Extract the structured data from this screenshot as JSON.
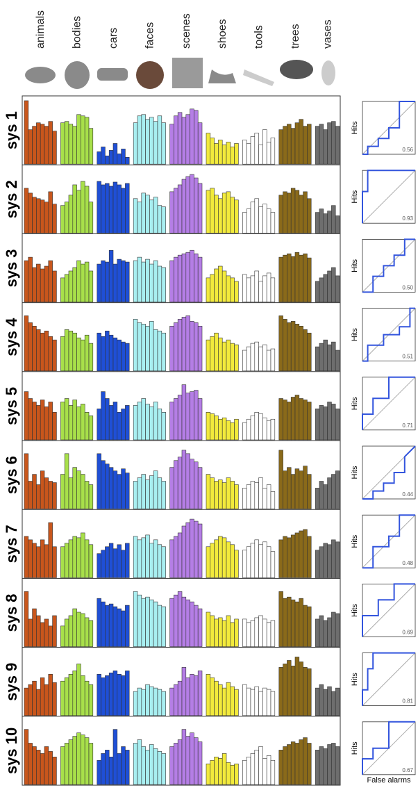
{
  "chart_data": {
    "type": "bar-grid",
    "categories": [
      "animals",
      "bodies",
      "cars",
      "faces",
      "scenes",
      "shoes",
      "tools",
      "trees",
      "vases"
    ],
    "colors": [
      "#c8561c",
      "#a8e04a",
      "#1f4fd6",
      "#a8eef0",
      "#b57ee6",
      "#f2ea3c",
      "#ffffff",
      "#8a6a1a",
      "#6e6e6e"
    ],
    "roc_ylabel": "Hits",
    "roc_xlabel": "False alarms",
    "rows": [
      {
        "label": "sys 1",
        "auc": {
          "value": 0.56,
          "label": "0.56"
        },
        "values": [
          [
            92,
            50,
            55,
            60,
            58,
            55,
            62,
            48
          ],
          [
            60,
            62,
            58,
            55,
            72,
            70,
            68,
            52
          ],
          [
            18,
            25,
            12,
            20,
            30,
            15,
            22,
            10
          ],
          [
            60,
            70,
            72,
            65,
            68,
            62,
            70,
            60
          ],
          [
            58,
            70,
            75,
            68,
            72,
            80,
            78,
            60
          ],
          [
            45,
            38,
            30,
            35,
            28,
            32,
            25,
            30
          ],
          [
            35,
            30,
            40,
            45,
            28,
            50,
            32,
            38
          ],
          [
            50,
            55,
            58,
            52,
            60,
            65,
            55,
            58
          ],
          [
            55,
            58,
            50,
            60,
            62,
            55
          ]
        ],
        "roc_x": [
          0,
          0.1,
          0.1,
          0.3,
          0.3,
          0.5,
          0.5,
          0.7,
          0.7,
          1
        ],
        "roc_y": [
          0,
          0,
          0.15,
          0.15,
          0.3,
          0.3,
          0.5,
          0.5,
          1,
          1
        ]
      },
      {
        "label": "sys 2",
        "auc": {
          "value": 0.93,
          "label": "0.93"
        },
        "values": [
          [
            65,
            58,
            52,
            50,
            48,
            45,
            60,
            42
          ],
          [
            40,
            45,
            55,
            70,
            62,
            75,
            68,
            45
          ],
          [
            75,
            70,
            72,
            68,
            74,
            70,
            65,
            72
          ],
          [
            50,
            45,
            58,
            55,
            48,
            52,
            40,
            38
          ],
          [
            60,
            65,
            70,
            78,
            82,
            85,
            80,
            72
          ],
          [
            62,
            65,
            55,
            50,
            58,
            60,
            52,
            48
          ],
          [
            30,
            35,
            45,
            50,
            38,
            42,
            35,
            30
          ],
          [
            55,
            60,
            58,
            65,
            62,
            55,
            60,
            50
          ],
          [
            30,
            35,
            28,
            32,
            40,
            25
          ]
        ],
        "roc_x": [
          0,
          0,
          0.1,
          0.1,
          1
        ],
        "roc_y": [
          0,
          0.6,
          0.6,
          1,
          1
        ]
      },
      {
        "label": "sys 3",
        "auc": {
          "value": 0.5,
          "label": "0.50"
        },
        "values": [
          [
            60,
            65,
            50,
            55,
            48,
            52,
            60,
            45
          ],
          [
            35,
            40,
            45,
            50,
            60,
            55,
            58,
            45
          ],
          [
            55,
            60,
            58,
            75,
            55,
            62,
            60,
            58
          ],
          [
            60,
            65,
            58,
            62,
            55,
            60,
            52,
            50
          ],
          [
            60,
            65,
            68,
            70,
            72,
            75,
            70,
            65
          ],
          [
            35,
            40,
            48,
            52,
            45,
            38,
            35,
            30
          ],
          [
            40,
            35,
            38,
            45,
            30,
            38,
            42,
            35
          ],
          [
            65,
            68,
            70,
            66,
            72,
            68,
            70,
            64
          ],
          [
            30,
            35,
            40,
            45,
            50,
            38
          ]
        ],
        "roc_x": [
          0,
          0.2,
          0.2,
          0.4,
          0.4,
          0.6,
          0.6,
          0.8,
          0.8,
          1
        ],
        "roc_y": [
          0,
          0,
          0.3,
          0.3,
          0.5,
          0.5,
          0.7,
          0.7,
          1,
          1
        ]
      },
      {
        "label": "sys 4",
        "auc": {
          "value": 0.51,
          "label": "0.51"
        },
        "values": [
          [
            80,
            70,
            65,
            60,
            55,
            58,
            50,
            45
          ],
          [
            50,
            60,
            58,
            55,
            48,
            45,
            52,
            40
          ],
          [
            55,
            50,
            58,
            52,
            48,
            45,
            42,
            40
          ],
          [
            75,
            70,
            68,
            65,
            72,
            60,
            58,
            55
          ],
          [
            65,
            70,
            75,
            78,
            80,
            72,
            70,
            65
          ],
          [
            45,
            50,
            55,
            48,
            42,
            45,
            40,
            38
          ],
          [
            30,
            35,
            40,
            42,
            35,
            38,
            30,
            32
          ],
          [
            80,
            75,
            70,
            72,
            68,
            65,
            60,
            55
          ],
          [
            35,
            40,
            45,
            38,
            42,
            30
          ]
        ],
        "roc_x": [
          0,
          0.1,
          0.1,
          0.4,
          0.4,
          0.7,
          0.7,
          0.9,
          0.9,
          1
        ],
        "roc_y": [
          0,
          0,
          0.3,
          0.3,
          0.5,
          0.5,
          0.65,
          0.65,
          1,
          1
        ]
      },
      {
        "label": "sys 5",
        "auc": {
          "value": 0.71,
          "label": "0.71"
        },
        "values": [
          [
            70,
            60,
            55,
            50,
            58,
            48,
            55,
            40
          ],
          [
            55,
            60,
            50,
            58,
            48,
            52,
            40,
            35
          ],
          [
            45,
            70,
            60,
            50,
            55,
            40,
            45,
            50
          ],
          [
            50,
            55,
            60,
            52,
            48,
            55,
            45,
            40
          ],
          [
            55,
            60,
            65,
            80,
            68,
            70,
            72,
            60
          ],
          [
            40,
            38,
            35,
            30,
            32,
            28,
            25,
            30
          ],
          [
            25,
            30,
            35,
            40,
            38,
            32,
            28,
            30
          ],
          [
            60,
            58,
            55,
            62,
            65,
            60,
            58,
            55
          ],
          [
            45,
            50,
            48,
            55,
            52,
            45
          ]
        ],
        "roc_x": [
          0,
          0,
          0.2,
          0.2,
          0.5,
          0.5,
          1
        ],
        "roc_y": [
          0,
          0.3,
          0.3,
          0.6,
          0.6,
          1,
          1
        ]
      },
      {
        "label": "sys 6",
        "auc": {
          "value": 0.44,
          "label": "0.44"
        },
        "values": [
          [
            80,
            40,
            50,
            35,
            55,
            45,
            40,
            38
          ],
          [
            50,
            80,
            45,
            60,
            55,
            50,
            40,
            35
          ],
          [
            80,
            70,
            65,
            60,
            55,
            50,
            58,
            52
          ],
          [
            40,
            45,
            50,
            42,
            48,
            55,
            45,
            40
          ],
          [
            60,
            70,
            75,
            85,
            80,
            72,
            68,
            60
          ],
          [
            50,
            45,
            40,
            42,
            38,
            45,
            40,
            35
          ],
          [
            30,
            35,
            40,
            38,
            45,
            30,
            35,
            25
          ],
          [
            85,
            55,
            60,
            50,
            58,
            55,
            62,
            50
          ],
          [
            30,
            40,
            35,
            45,
            50,
            55
          ]
        ],
        "roc_x": [
          0,
          0.2,
          0.2,
          0.4,
          0.4,
          0.6,
          0.6,
          0.8,
          0.8,
          1
        ],
        "roc_y": [
          0,
          0,
          0.15,
          0.15,
          0.3,
          0.3,
          0.5,
          0.5,
          0.8,
          1
        ]
      },
      {
        "label": "sys 7",
        "auc": {
          "value": 0.48,
          "label": "0.48"
        },
        "values": [
          [
            60,
            55,
            50,
            45,
            55,
            48,
            80,
            45
          ],
          [
            45,
            50,
            55,
            60,
            58,
            65,
            55,
            48
          ],
          [
            35,
            40,
            45,
            50,
            42,
            48,
            40,
            50
          ],
          [
            60,
            55,
            58,
            62,
            50,
            55,
            48,
            45
          ],
          [
            55,
            60,
            65,
            75,
            80,
            85,
            82,
            78
          ],
          [
            45,
            50,
            55,
            60,
            58,
            52,
            48,
            40
          ],
          [
            40,
            45,
            50,
            55,
            48,
            52,
            45,
            38
          ],
          [
            55,
            60,
            58,
            62,
            65,
            68,
            70,
            60
          ],
          [
            40,
            45,
            50,
            48,
            55,
            52
          ]
        ],
        "roc_x": [
          0,
          0.2,
          0.2,
          0.5,
          0.5,
          0.7,
          0.7,
          1
        ],
        "roc_y": [
          0,
          0,
          0.4,
          0.4,
          0.6,
          0.6,
          1,
          1
        ]
      },
      {
        "label": "sys 8",
        "auc": {
          "value": 0.69,
          "label": "0.69"
        },
        "values": [
          [
            80,
            40,
            55,
            45,
            35,
            40,
            30,
            45
          ],
          [
            30,
            40,
            45,
            55,
            50,
            48,
            42,
            38
          ],
          [
            70,
            65,
            60,
            62,
            58,
            55,
            52,
            60
          ],
          [
            80,
            75,
            70,
            72,
            68,
            65,
            60,
            58
          ],
          [
            70,
            75,
            80,
            72,
            68,
            65,
            60,
            55
          ],
          [
            50,
            45,
            40,
            42,
            38,
            45,
            35,
            40
          ],
          [
            40,
            35,
            38,
            42,
            45,
            40,
            35,
            38
          ],
          [
            80,
            70,
            72,
            68,
            65,
            70,
            60,
            58
          ],
          [
            40,
            45,
            38,
            42,
            50,
            48
          ]
        ],
        "roc_x": [
          0,
          0,
          0.3,
          0.3,
          0.6,
          0.6,
          1
        ],
        "roc_y": [
          0,
          0.4,
          0.4,
          0.7,
          0.7,
          1,
          1
        ]
      },
      {
        "label": "sys 9",
        "auc": {
          "value": 0.81,
          "label": "0.81"
        },
        "values": [
          [
            40,
            45,
            50,
            38,
            55,
            45,
            60,
            48
          ],
          [
            50,
            55,
            60,
            65,
            75,
            58,
            50,
            45
          ],
          [
            60,
            55,
            58,
            62,
            65,
            60,
            58,
            65
          ],
          [
            35,
            40,
            38,
            45,
            42,
            40,
            38,
            35
          ],
          [
            40,
            45,
            50,
            70,
            55,
            60,
            58,
            65
          ],
          [
            60,
            55,
            50,
            45,
            40,
            48,
            42,
            38
          ],
          [
            45,
            40,
            38,
            42,
            35,
            40,
            38,
            35
          ],
          [
            70,
            75,
            80,
            72,
            85,
            78,
            70,
            68
          ],
          [
            40,
            45,
            38,
            42,
            35,
            40
          ]
        ],
        "roc_x": [
          0,
          0,
          0.1,
          0.1,
          0.2,
          0.2,
          1
        ],
        "roc_y": [
          0,
          0.3,
          0.3,
          0.7,
          0.7,
          1,
          1
        ]
      },
      {
        "label": "sys 10",
        "auc": {
          "value": 0.67,
          "label": "0.67"
        },
        "values": [
          [
            80,
            60,
            55,
            50,
            45,
            55,
            48,
            40
          ],
          [
            55,
            60,
            65,
            70,
            75,
            72,
            68,
            60
          ],
          [
            35,
            45,
            50,
            40,
            80,
            45,
            55,
            50
          ],
          [
            60,
            65,
            55,
            50,
            58,
            52,
            48,
            45
          ],
          [
            55,
            60,
            65,
            80,
            70,
            75,
            68,
            62
          ],
          [
            30,
            35,
            40,
            38,
            45,
            32,
            28,
            30
          ],
          [
            35,
            40,
            45,
            50,
            55,
            38,
            42,
            35
          ],
          [
            50,
            55,
            58,
            62,
            60,
            65,
            68,
            60
          ],
          [
            50,
            55,
            52,
            58,
            60,
            55
          ]
        ],
        "roc_x": [
          0,
          0,
          0.2,
          0.2,
          0.5,
          0.5,
          1
        ],
        "roc_y": [
          0,
          0.3,
          0.3,
          0.5,
          0.5,
          1,
          1
        ]
      }
    ]
  }
}
